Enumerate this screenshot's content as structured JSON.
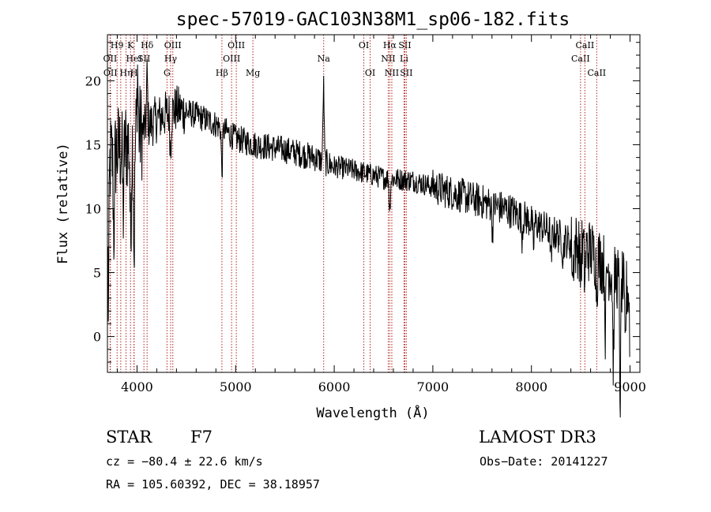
{
  "chart_data": {
    "type": "line",
    "title": "spec-57019-GAC103N38M1_sp06-182.fits",
    "xlabel": "Wavelength (Å)",
    "ylabel": "Flux (relative)",
    "xlim": [
      3700,
      9100
    ],
    "ylim": [
      -2.8,
      23.6
    ],
    "x_ticks": [
      4000,
      5000,
      6000,
      7000,
      8000,
      9000
    ],
    "x_tick_labels": [
      "4000",
      "5000",
      "6000",
      "7000",
      "8000",
      "9000"
    ],
    "y_ticks": [
      0,
      5,
      10,
      15,
      20
    ],
    "y_tick_labels": [
      "0",
      "5",
      "10",
      "15",
      "20"
    ],
    "grid": false,
    "line_color": "#000000",
    "marker_color": "#b22222",
    "continuum_anchors": [
      {
        "x": 3700,
        "y": 13.5
      },
      {
        "x": 3800,
        "y": 14.5
      },
      {
        "x": 3900,
        "y": 15.0
      },
      {
        "x": 4000,
        "y": 15.8
      },
      {
        "x": 4200,
        "y": 17.0
      },
      {
        "x": 4400,
        "y": 17.8
      },
      {
        "x": 4600,
        "y": 17.3
      },
      {
        "x": 4800,
        "y": 16.6
      },
      {
        "x": 5000,
        "y": 15.5
      },
      {
        "x": 5200,
        "y": 15.0
      },
      {
        "x": 5500,
        "y": 14.6
      },
      {
        "x": 5800,
        "y": 14.0
      },
      {
        "x": 6000,
        "y": 13.3
      },
      {
        "x": 6200,
        "y": 13.0
      },
      {
        "x": 6500,
        "y": 12.4
      },
      {
        "x": 6800,
        "y": 12.2
      },
      {
        "x": 7000,
        "y": 11.7
      },
      {
        "x": 7300,
        "y": 11.0
      },
      {
        "x": 7600,
        "y": 10.3
      },
      {
        "x": 7800,
        "y": 9.8
      },
      {
        "x": 8000,
        "y": 9.0
      },
      {
        "x": 8200,
        "y": 8.2
      },
      {
        "x": 8400,
        "y": 7.3
      },
      {
        "x": 8600,
        "y": 6.7
      },
      {
        "x": 8800,
        "y": 5.2
      },
      {
        "x": 9000,
        "y": 3.5
      }
    ],
    "spectral_features": [
      {
        "x": 3710,
        "depth": -11.0
      },
      {
        "x": 3765,
        "depth": -6.0
      },
      {
        "x": 3860,
        "depth": -5.0
      },
      {
        "x": 3935,
        "depth": -8.0
      },
      {
        "x": 3970,
        "depth": -9.0
      },
      {
        "x": 4005,
        "depth": 5.0
      },
      {
        "x": 4102,
        "depth": 4.0
      },
      {
        "x": 4340,
        "depth": -3.0
      },
      {
        "x": 4861,
        "depth": -3.5
      },
      {
        "x": 5892,
        "depth": 6.0
      },
      {
        "x": 6563,
        "depth": -2.5
      },
      {
        "x": 7605,
        "depth": -2.0
      },
      {
        "x": 7905,
        "depth": -1.5
      },
      {
        "x": 8020,
        "depth": -2.0
      },
      {
        "x": 8200,
        "depth": -2.5
      },
      {
        "x": 8320,
        "depth": -1.5
      },
      {
        "x": 8420,
        "depth": -2.5
      },
      {
        "x": 8498,
        "depth": -2.0
      },
      {
        "x": 8542,
        "depth": -2.5
      },
      {
        "x": 8662,
        "depth": -2.5
      },
      {
        "x": 8750,
        "depth": -5.0
      },
      {
        "x": 8830,
        "depth": -7.0
      },
      {
        "x": 8900,
        "depth": -9.0
      },
      {
        "x": 8950,
        "depth": -5.0
      },
      {
        "x": 9000,
        "depth": -3.5
      }
    ],
    "line_markers": [
      {
        "x": 3727,
        "label": "OII",
        "row": 2
      },
      {
        "x": 3730,
        "label": "OII",
        "row": 3
      },
      {
        "x": 3798,
        "label": "H9",
        "row": 1
      },
      {
        "x": 3835,
        "label": "",
        "row": 1
      },
      {
        "x": 3889,
        "label": "Hη",
        "row": 3
      },
      {
        "x": 3934,
        "label": "K",
        "row": 1
      },
      {
        "x": 3970,
        "label": "HeI",
        "row": 2
      },
      {
        "x": 3970,
        "label": "H",
        "row": 3
      },
      {
        "x": 4070,
        "label": "SII",
        "row": 2
      },
      {
        "x": 4102,
        "label": "Hδ",
        "row": 1
      },
      {
        "x": 4304,
        "label": "G",
        "row": 3
      },
      {
        "x": 4341,
        "label": "Hγ",
        "row": 2
      },
      {
        "x": 4363,
        "label": "OIII",
        "row": 1
      },
      {
        "x": 4861,
        "label": "Hβ",
        "row": 3
      },
      {
        "x": 4959,
        "label": "OIII",
        "row": 2
      },
      {
        "x": 5007,
        "label": "OIII",
        "row": 1
      },
      {
        "x": 5175,
        "label": "Mg",
        "row": 3
      },
      {
        "x": 5893,
        "label": "Na",
        "row": 2
      },
      {
        "x": 6300,
        "label": "OI",
        "row": 1
      },
      {
        "x": 6364,
        "label": "OI",
        "row": 3
      },
      {
        "x": 6548,
        "label": "NII",
        "row": 2
      },
      {
        "x": 6563,
        "label": "Hα",
        "row": 1
      },
      {
        "x": 6584,
        "label": "NII",
        "row": 3
      },
      {
        "x": 6708,
        "label": "Li",
        "row": 2
      },
      {
        "x": 6716,
        "label": "SII",
        "row": 1
      },
      {
        "x": 6731,
        "label": "SII",
        "row": 3
      },
      {
        "x": 8498,
        "label": "CaII",
        "row": 2
      },
      {
        "x": 8542,
        "label": "CaII",
        "row": 1
      },
      {
        "x": 8662,
        "label": "CaII",
        "row": 3
      }
    ]
  },
  "info": {
    "object_class": "STAR",
    "subclass": "F7",
    "survey": "LAMOST DR3",
    "redshift": "cz = −80.4 ± 22.6 km/s",
    "obs_date": "Obs−Date: 20141227",
    "coords": "RA = 105.60392, DEC =  38.18957"
  }
}
